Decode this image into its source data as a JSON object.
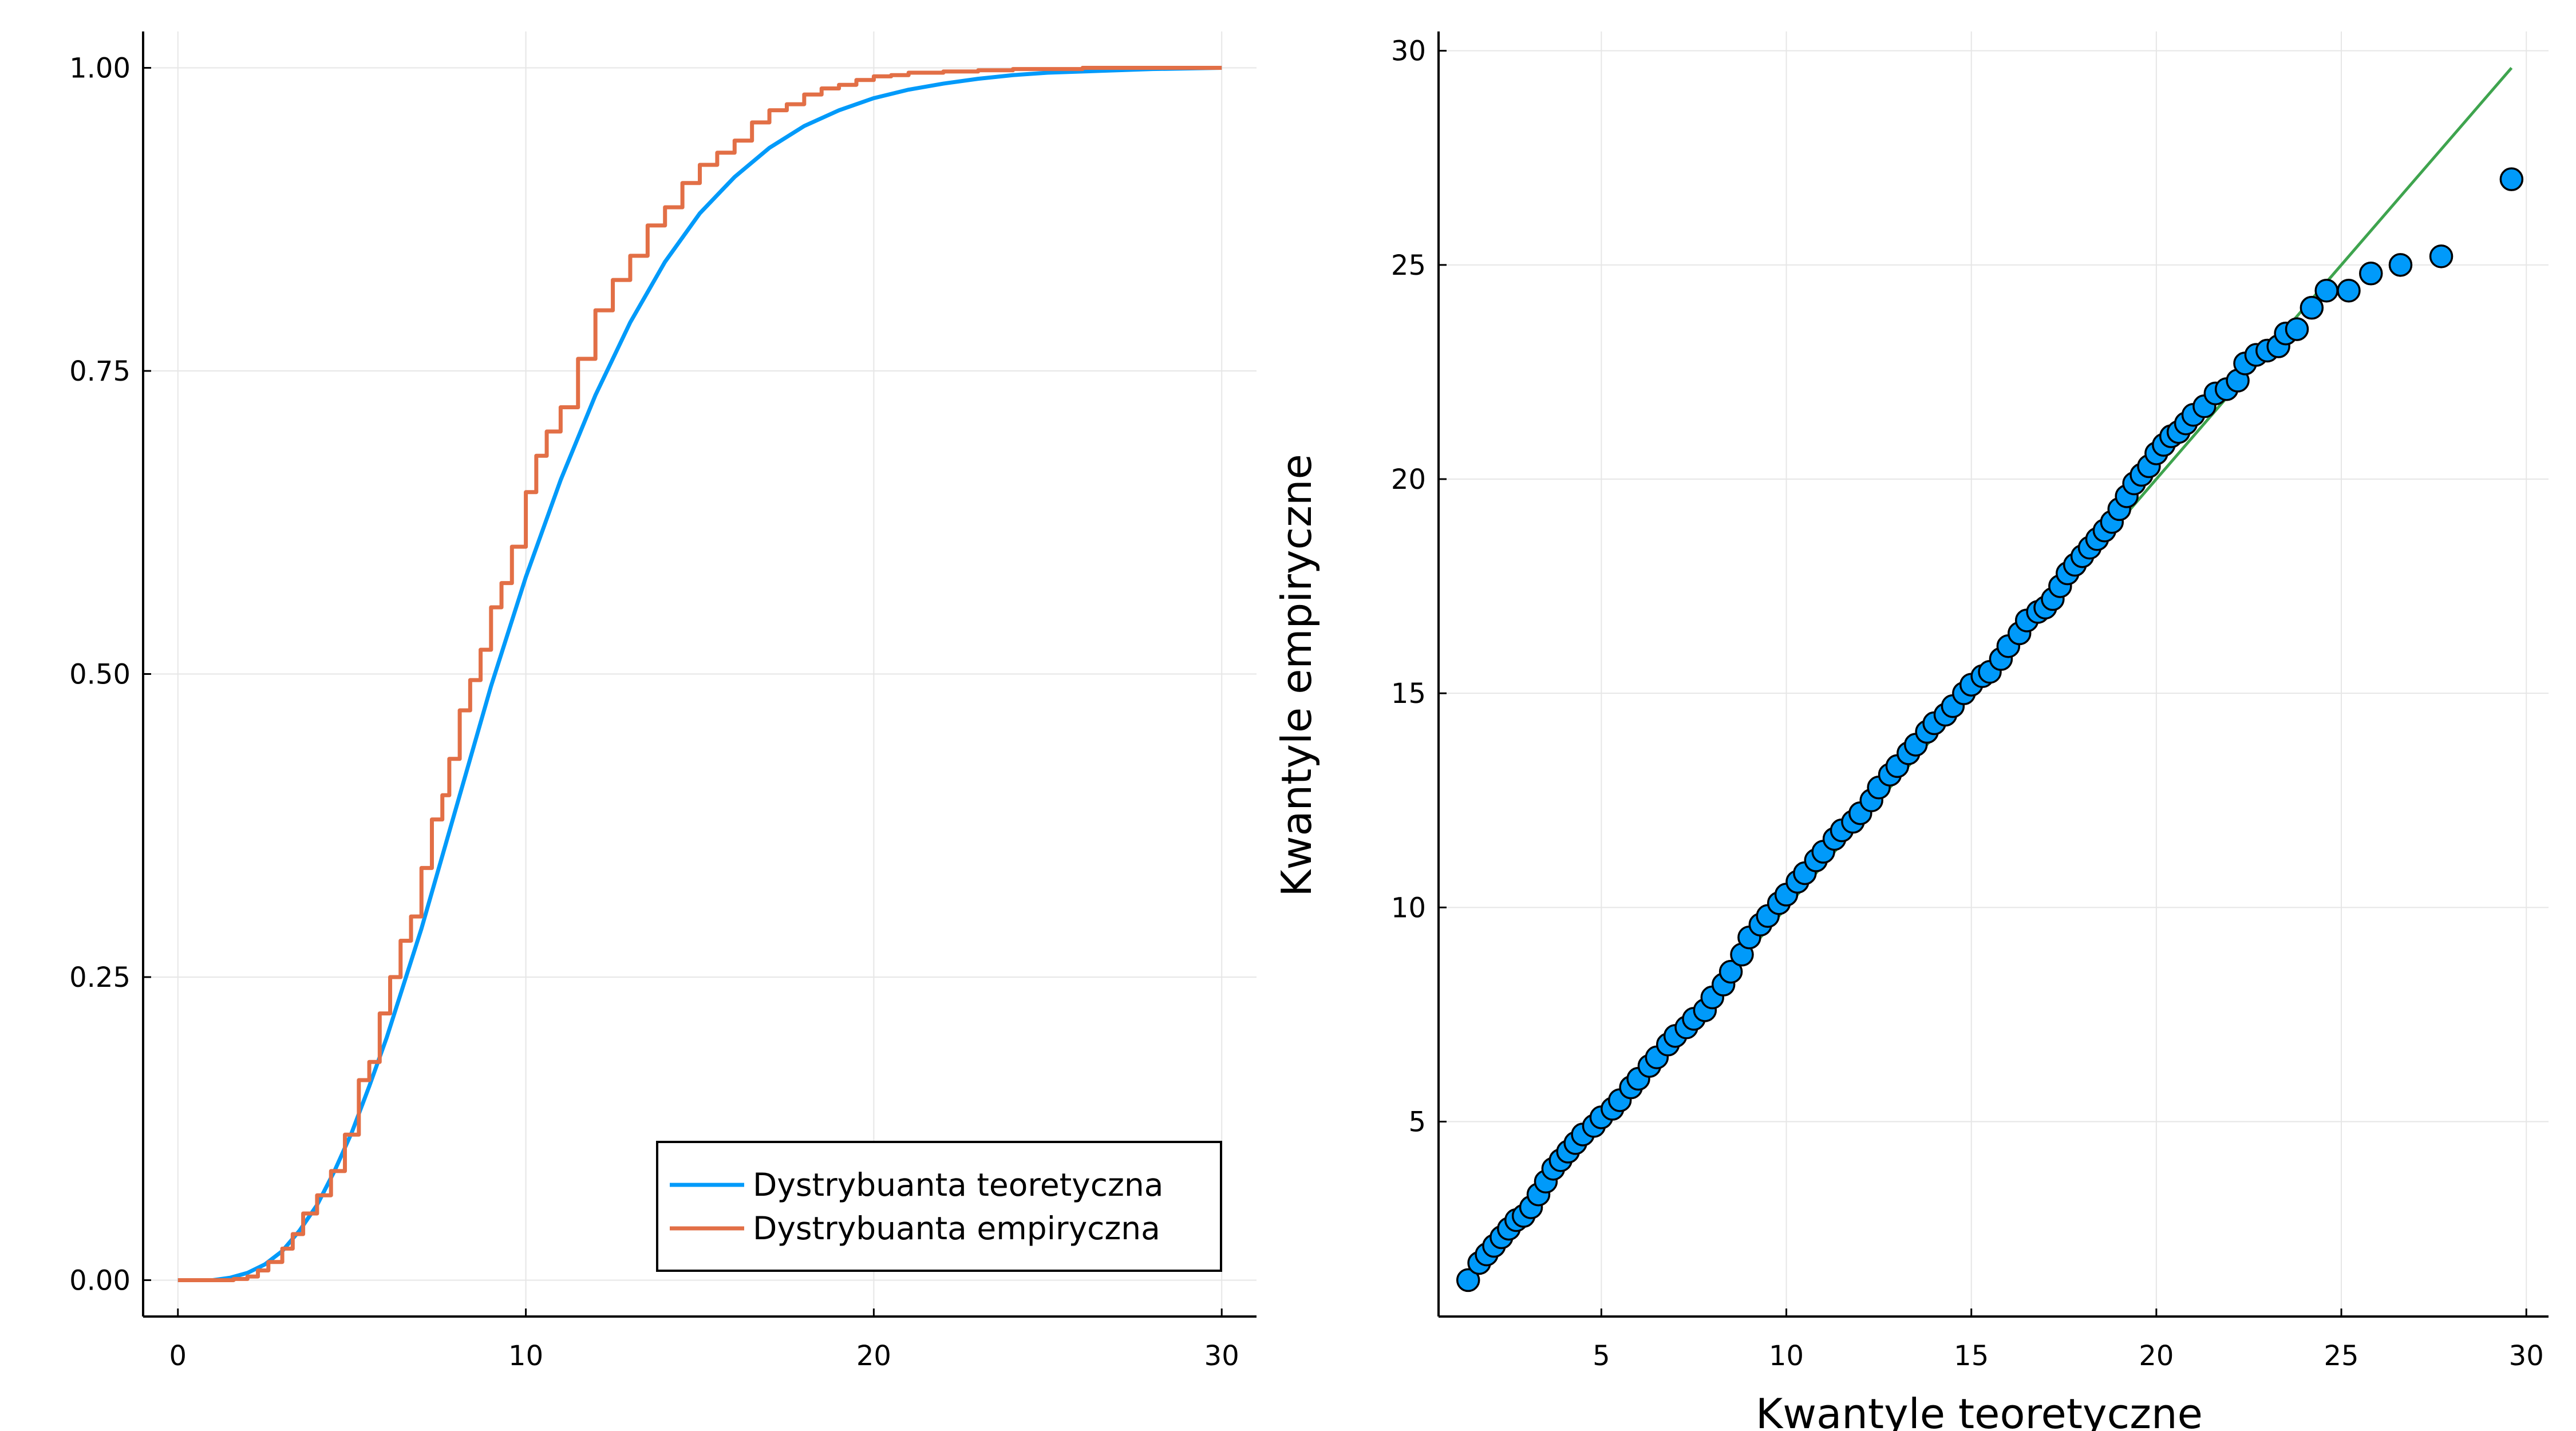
{
  "colors": {
    "theoretical": "#009AFA",
    "empirical": "#E26F46",
    "reference_line": "#3EA44E",
    "points_fill": "#009AFA",
    "points_stroke": "#000000",
    "grid": "#e6e6e6",
    "axis": "#000000"
  },
  "chart_data": [
    {
      "type": "line",
      "title": "",
      "xlabel": "",
      "ylabel": "",
      "xlim": [
        -1,
        31
      ],
      "ylim": [
        -0.03,
        1.03
      ],
      "xticks": [
        0,
        10,
        20,
        30
      ],
      "xtick_labels": [
        "0",
        "10",
        "20",
        "30"
      ],
      "yticks": [
        0,
        0.25,
        0.5,
        0.75,
        1.0
      ],
      "ytick_labels": [
        "0.00",
        "0.25",
        "0.50",
        "0.75",
        "1.00"
      ],
      "grid": true,
      "legend_position": "bottom-right",
      "series": [
        {
          "name": "Dystrybuanta teoretyczna",
          "x": [
            0,
            1,
            1.5,
            2,
            2.5,
            3,
            3.5,
            4,
            4.5,
            5,
            5.5,
            6,
            6.5,
            7,
            7.5,
            8,
            8.5,
            9,
            9.5,
            10,
            11,
            12,
            13,
            14,
            15,
            16,
            17,
            18,
            19,
            20,
            21,
            22,
            23,
            24,
            25,
            26,
            27,
            28,
            29,
            30
          ],
          "y": [
            0,
            0.0,
            0.002,
            0.006,
            0.013,
            0.024,
            0.041,
            0.062,
            0.09,
            0.122,
            0.16,
            0.2,
            0.245,
            0.29,
            0.34,
            0.39,
            0.44,
            0.49,
            0.535,
            0.58,
            0.66,
            0.73,
            0.79,
            0.84,
            0.88,
            0.91,
            0.934,
            0.952,
            0.965,
            0.975,
            0.982,
            0.987,
            0.991,
            0.994,
            0.996,
            0.997,
            0.998,
            0.999,
            0.9995,
            1.0
          ]
        },
        {
          "name": "Dystrybuanta empiryczna",
          "x": [
            0,
            1.2,
            1.6,
            2.0,
            2.3,
            2.6,
            3.0,
            3.3,
            3.6,
            4.0,
            4.4,
            4.8,
            5.2,
            5.5,
            5.8,
            6.1,
            6.4,
            6.7,
            7.0,
            7.3,
            7.6,
            7.8,
            8.1,
            8.4,
            8.7,
            9.0,
            9.3,
            9.6,
            10.0,
            10.3,
            10.6,
            11.0,
            11.5,
            12.0,
            12.5,
            13.0,
            13.5,
            14.0,
            14.5,
            15.0,
            15.5,
            16.0,
            16.5,
            17.0,
            17.5,
            18.0,
            18.5,
            19.0,
            19.5,
            20.0,
            20.5,
            21.0,
            22.0,
            23.0,
            24.0,
            25.0,
            26.0,
            27.0,
            28.0,
            30.0
          ],
          "y": [
            0,
            0.0,
            0.001,
            0.003,
            0.008,
            0.015,
            0.026,
            0.038,
            0.055,
            0.07,
            0.09,
            0.12,
            0.165,
            0.18,
            0.22,
            0.25,
            0.28,
            0.3,
            0.34,
            0.38,
            0.4,
            0.43,
            0.47,
            0.495,
            0.52,
            0.555,
            0.575,
            0.605,
            0.65,
            0.68,
            0.7,
            0.72,
            0.76,
            0.8,
            0.825,
            0.845,
            0.87,
            0.885,
            0.905,
            0.92,
            0.93,
            0.94,
            0.955,
            0.965,
            0.97,
            0.978,
            0.983,
            0.986,
            0.99,
            0.993,
            0.994,
            0.996,
            0.997,
            0.998,
            0.999,
            0.999,
            1.0,
            1.0,
            1.0,
            1.0
          ]
        }
      ]
    },
    {
      "type": "scatter",
      "title": "",
      "xlabel": "Kwantyle teoretyczne",
      "ylabel": "Kwantyle empiryczne",
      "xlim": [
        0.6,
        30.6
      ],
      "ylim": [
        0.45,
        30.45
      ],
      "xticks": [
        5,
        10,
        15,
        20,
        25,
        30
      ],
      "xtick_labels": [
        "5",
        "10",
        "15",
        "20",
        "25",
        "30"
      ],
      "yticks": [
        5,
        10,
        15,
        20,
        25,
        30
      ],
      "ytick_labels": [
        "5",
        "10",
        "15",
        "20",
        "25",
        "30"
      ],
      "grid": true,
      "reference_line": {
        "x": [
          1.4,
          29.6
        ],
        "y": [
          1.4,
          29.6
        ]
      },
      "points": {
        "x": [
          1.4,
          1.7,
          1.9,
          2.1,
          2.3,
          2.5,
          2.7,
          2.9,
          3.1,
          3.3,
          3.5,
          3.7,
          3.9,
          4.1,
          4.3,
          4.5,
          4.8,
          5.0,
          5.3,
          5.5,
          5.8,
          6.0,
          6.3,
          6.5,
          6.8,
          7.0,
          7.3,
          7.5,
          7.8,
          8.0,
          8.3,
          8.5,
          8.8,
          9.0,
          9.3,
          9.5,
          9.8,
          10.0,
          10.3,
          10.5,
          10.8,
          11.0,
          11.3,
          11.5,
          11.8,
          12.0,
          12.3,
          12.5,
          12.8,
          13.0,
          13.3,
          13.5,
          13.8,
          14.0,
          14.3,
          14.5,
          14.8,
          15.0,
          15.3,
          15.5,
          15.8,
          16.0,
          16.3,
          16.5,
          16.8,
          17.0,
          17.2,
          17.4,
          17.6,
          17.8,
          18.0,
          18.2,
          18.4,
          18.6,
          18.8,
          19.0,
          19.2,
          19.4,
          19.6,
          19.8,
          20.0,
          20.2,
          20.4,
          20.6,
          20.8,
          21.0,
          21.3,
          21.6,
          21.9,
          22.2,
          22.4,
          22.7,
          23.0,
          23.3,
          23.5,
          23.8,
          24.2,
          24.6,
          25.2,
          25.8,
          26.6,
          27.7,
          29.6
        ],
        "y": [
          1.3,
          1.7,
          1.9,
          2.1,
          2.3,
          2.5,
          2.7,
          2.8,
          3.0,
          3.3,
          3.6,
          3.9,
          4.1,
          4.3,
          4.5,
          4.7,
          4.9,
          5.1,
          5.3,
          5.5,
          5.8,
          6.0,
          6.3,
          6.5,
          6.8,
          7.0,
          7.2,
          7.4,
          7.6,
          7.9,
          8.2,
          8.5,
          8.9,
          9.3,
          9.6,
          9.8,
          10.1,
          10.3,
          10.6,
          10.8,
          11.1,
          11.3,
          11.6,
          11.8,
          12.0,
          12.2,
          12.5,
          12.8,
          13.1,
          13.3,
          13.6,
          13.8,
          14.1,
          14.3,
          14.5,
          14.7,
          15.0,
          15.2,
          15.4,
          15.5,
          15.8,
          16.1,
          16.4,
          16.7,
          16.9,
          17.0,
          17.2,
          17.5,
          17.8,
          18.0,
          18.2,
          18.4,
          18.6,
          18.8,
          19.0,
          19.3,
          19.6,
          19.9,
          20.1,
          20.3,
          20.6,
          20.8,
          21.0,
          21.1,
          21.3,
          21.5,
          21.7,
          22.0,
          22.1,
          22.3,
          22.7,
          22.9,
          23.0,
          23.1,
          23.4,
          23.5,
          24.0,
          24.4,
          24.4,
          24.8,
          25.0,
          25.2,
          27.0
        ]
      }
    }
  ]
}
